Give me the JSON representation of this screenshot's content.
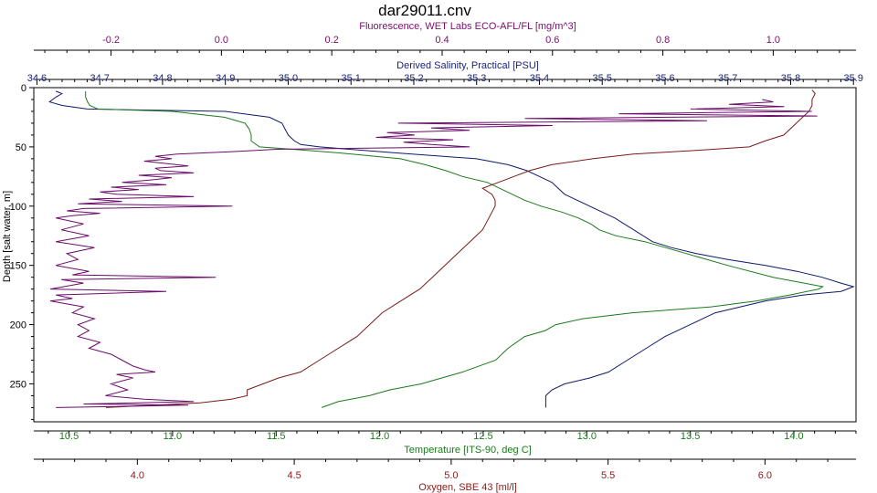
{
  "chart_data": {
    "type": "line",
    "title": "dar29011.cnv",
    "ylabel": "Depth [salt water, m]",
    "y_ticks": [
      0,
      50,
      100,
      150,
      200,
      250
    ],
    "ylim": [
      0,
      282
    ],
    "y_inverted": true,
    "axes": {
      "fluorescence": {
        "label": "Fluorescence, WET Labs ECO-AFL/FL [mg/m^3]",
        "position": "top-outer",
        "color": "#7a0f6e",
        "range": [
          -0.34,
          1.15
        ],
        "ticks": [
          "-0.2",
          "0.0",
          "0.2",
          "0.4",
          "0.6",
          "0.8",
          "1.0"
        ],
        "tick_values": [
          -0.2,
          0.0,
          0.2,
          0.4,
          0.6,
          0.8,
          1.0
        ]
      },
      "salinity": {
        "label": "Derived Salinity, Practical [PSU]",
        "position": "top-inner",
        "color": "#1a237e",
        "range": [
          34.595,
          35.904
        ],
        "ticks": [
          "34.6",
          "34.7",
          "34.8",
          "34.9",
          "35.0",
          "35.1",
          "35.2",
          "35.3",
          "35.4",
          "35.5",
          "35.6",
          "35.7",
          "35.8",
          "35.9"
        ],
        "tick_values": [
          34.6,
          34.7,
          34.8,
          34.9,
          35.0,
          35.1,
          35.2,
          35.3,
          35.4,
          35.5,
          35.6,
          35.7,
          35.8,
          35.9
        ]
      },
      "temperature": {
        "label": "Temperature [ITS-90, deg C]",
        "position": "bottom-inner",
        "color": "#1b7a1b",
        "range": [
          10.33,
          14.3
        ],
        "ticks": [
          "10.5",
          "11.0",
          "11.5",
          "12.0",
          "12.5",
          "13.0",
          "13.5",
          "14.0"
        ],
        "tick_values": [
          10.5,
          11.0,
          11.5,
          12.0,
          12.5,
          13.0,
          13.5,
          14.0
        ]
      },
      "oxygen": {
        "label": "Oxygen, SBE 43 [ml/l]",
        "position": "bottom-outer",
        "color": "#8b1a1a",
        "range": [
          3.67,
          6.29
        ],
        "ticks": [
          "4.0",
          "4.5",
          "5.0",
          "5.5",
          "6.0"
        ],
        "tick_values": [
          4.0,
          4.5,
          5.0,
          5.5,
          6.0
        ]
      }
    },
    "series": [
      {
        "name": "Derived Salinity, Practical [PSU]",
        "axis": "salinity",
        "color": "#0d1a6b",
        "depth": [
          3,
          5,
          8,
          12,
          15,
          18,
          20,
          25,
          30,
          40,
          45,
          48,
          50,
          55,
          60,
          65,
          70,
          75,
          80,
          85,
          90,
          95,
          100,
          110,
          120,
          130,
          135,
          140,
          145,
          150,
          155,
          160,
          165,
          168,
          170,
          172,
          175,
          180,
          185,
          190,
          195,
          200,
          210,
          220,
          230,
          240,
          245,
          250,
          255,
          260,
          265,
          270
        ],
        "values": [
          34.63,
          34.64,
          34.63,
          34.62,
          34.64,
          34.68,
          34.9,
          34.97,
          34.99,
          35.0,
          35.01,
          35.02,
          35.05,
          35.17,
          35.3,
          35.35,
          35.38,
          35.4,
          35.42,
          35.43,
          35.44,
          35.46,
          35.48,
          35.52,
          35.55,
          35.58,
          35.61,
          35.65,
          35.7,
          35.76,
          35.81,
          35.85,
          35.88,
          35.9,
          35.89,
          35.88,
          35.82,
          35.76,
          35.72,
          35.68,
          35.66,
          35.64,
          35.6,
          35.57,
          35.54,
          35.51,
          35.48,
          35.44,
          35.42,
          35.41,
          35.41,
          35.41
        ]
      },
      {
        "name": "Temperature [ITS-90, deg C]",
        "axis": "temperature",
        "color": "#1b7a1b",
        "depth": [
          3,
          8,
          12,
          15,
          18,
          20,
          25,
          30,
          35,
          40,
          45,
          50,
          52,
          55,
          60,
          65,
          70,
          75,
          80,
          85,
          90,
          95,
          100,
          105,
          110,
          115,
          120,
          125,
          130,
          140,
          150,
          160,
          165,
          168,
          170,
          175,
          180,
          185,
          190,
          195,
          200,
          205,
          210,
          220,
          230,
          240,
          250,
          255,
          260,
          265,
          270
        ],
        "values": [
          10.58,
          10.58,
          10.59,
          10.6,
          10.64,
          11.0,
          11.25,
          11.35,
          11.37,
          11.38,
          11.38,
          11.42,
          11.58,
          11.8,
          12.1,
          12.22,
          12.32,
          12.4,
          12.52,
          12.58,
          12.64,
          12.7,
          12.78,
          12.88,
          12.96,
          13.02,
          13.06,
          13.14,
          13.28,
          13.48,
          13.68,
          13.9,
          14.05,
          14.14,
          14.12,
          13.98,
          13.82,
          13.6,
          13.22,
          12.98,
          12.85,
          12.8,
          12.7,
          12.62,
          12.56,
          12.4,
          12.2,
          12.05,
          11.95,
          11.8,
          11.72
        ]
      },
      {
        "name": "Oxygen, SBE 43 [ml/l]",
        "axis": "oxygen",
        "color": "#7a1a1a",
        "depth": [
          2,
          5,
          10,
          15,
          20,
          25,
          30,
          35,
          40,
          45,
          50,
          53,
          56,
          60,
          65,
          70,
          75,
          80,
          85,
          90,
          95,
          100,
          110,
          120,
          130,
          140,
          150,
          160,
          170,
          180,
          190,
          200,
          210,
          220,
          230,
          240,
          245,
          250,
          255,
          260,
          263,
          266,
          270
        ],
        "values": [
          6.15,
          6.16,
          6.15,
          6.15,
          6.14,
          6.12,
          6.1,
          6.08,
          6.06,
          6.0,
          5.95,
          5.78,
          5.58,
          5.45,
          5.32,
          5.25,
          5.2,
          5.15,
          5.1,
          5.13,
          5.14,
          5.14,
          5.12,
          5.1,
          5.06,
          5.02,
          4.98,
          4.94,
          4.9,
          4.84,
          4.78,
          4.74,
          4.7,
          4.64,
          4.58,
          4.52,
          4.45,
          4.4,
          4.35,
          4.35,
          4.3,
          4.2,
          3.9
        ]
      },
      {
        "name": "Fluorescence, WET Labs ECO-AFL/FL [mg/m^3]",
        "axis": "fluorescence",
        "color": "#6b0d6b",
        "depth": [
          10,
          12,
          14,
          16,
          18,
          20,
          22,
          24,
          26,
          28,
          30,
          32,
          34,
          36,
          38,
          40,
          42,
          44,
          46,
          48,
          50,
          52,
          54,
          56,
          58,
          60,
          62,
          64,
          66,
          68,
          70,
          72,
          74,
          76,
          78,
          80,
          82,
          84,
          86,
          88,
          90,
          92,
          94,
          96,
          98,
          100,
          102,
          104,
          106,
          108,
          110,
          115,
          120,
          125,
          130,
          135,
          140,
          145,
          150,
          155,
          158,
          160,
          162,
          165,
          170,
          172,
          175,
          178,
          180,
          185,
          190,
          195,
          200,
          205,
          210,
          215,
          220,
          225,
          230,
          235,
          238,
          240,
          242,
          245,
          250,
          255,
          260,
          263,
          265,
          267,
          268,
          270
        ],
        "values": [
          0.98,
          1.0,
          0.92,
          1.02,
          0.85,
          1.07,
          0.72,
          1.08,
          0.55,
          0.88,
          0.32,
          0.6,
          0.38,
          0.45,
          0.3,
          0.35,
          0.28,
          0.42,
          0.33,
          0.38,
          0.45,
          0.1,
          0.02,
          -0.08,
          -0.12,
          -0.09,
          -0.14,
          -0.1,
          -0.06,
          -0.12,
          -0.11,
          -0.05,
          -0.15,
          -0.09,
          -0.13,
          -0.18,
          -0.1,
          -0.2,
          -0.15,
          -0.22,
          -0.19,
          -0.05,
          -0.24,
          -0.18,
          -0.26,
          0.02,
          -0.25,
          -0.28,
          -0.22,
          -0.27,
          -0.3,
          -0.25,
          -0.29,
          -0.24,
          -0.3,
          -0.23,
          -0.28,
          -0.26,
          -0.3,
          -0.24,
          -0.27,
          -0.01,
          -0.29,
          -0.25,
          -0.31,
          -0.1,
          -0.3,
          -0.27,
          -0.31,
          -0.25,
          -0.27,
          -0.23,
          -0.26,
          -0.24,
          -0.26,
          -0.22,
          -0.24,
          -0.2,
          -0.18,
          -0.16,
          -0.14,
          -0.12,
          -0.19,
          -0.16,
          -0.2,
          -0.17,
          -0.21,
          -0.14,
          -0.05,
          -0.25,
          -0.06,
          -0.3
        ]
      }
    ]
  }
}
